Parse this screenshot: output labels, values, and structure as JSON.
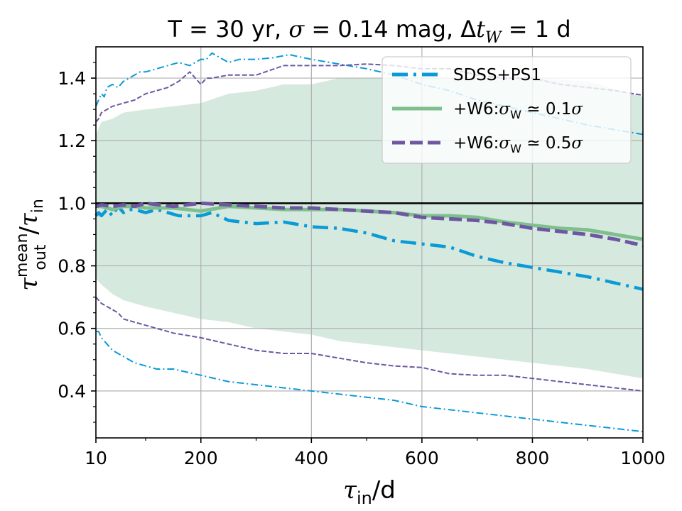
{
  "chart_data": {
    "type": "line",
    "title": {
      "prefix": "T = 30 yr, ",
      "sigma_symbol": "σ",
      "sigma_value": " = 0.14 mag, ",
      "delta": "Δ",
      "t_symbol": "t",
      "t_subscript": "W",
      "dt_value": " = 1 d"
    },
    "xlabel": {
      "symbol": "τ",
      "subscript": "in",
      "suffix": "/d"
    },
    "ylabel": {
      "num_symbol": "τ",
      "num_superscript": "mean",
      "num_subscript": "out",
      "slash": "/",
      "den_symbol": "τ",
      "den_subscript": "in"
    },
    "xlim": [
      10,
      1000
    ],
    "ylim": [
      0.25,
      1.5
    ],
    "xticks": [
      10,
      200,
      400,
      600,
      800,
      1000
    ],
    "xtick_labels": [
      "10",
      "200",
      "400",
      "600",
      "800",
      "1000"
    ],
    "yticks": [
      0.4,
      0.6,
      0.8,
      1.0,
      1.2,
      1.4
    ],
    "ytick_labels": [
      "0.4",
      "0.6",
      "0.8",
      "1.0",
      "1.2",
      "1.4"
    ],
    "grid": true,
    "reference_line": 1.0,
    "legend_position": "top-right",
    "colors": {
      "sdss": "#0a9ad6",
      "w6_01": "#7fbf8e",
      "w6_05": "#6e57a2",
      "band": "#d6e9de",
      "reference": "#000000"
    },
    "legend": [
      {
        "name": "SDSS+PS1",
        "style": "dashdot",
        "colorKey": "sdss"
      },
      {
        "name_prefix": "+W6:",
        "sigma": "σ",
        "sub": "W",
        "approx": " ≃ 0.1",
        "sigma2": "σ",
        "style": "solid",
        "colorKey": "w6_01"
      },
      {
        "name_prefix": "+W6:",
        "sigma": "σ",
        "sub": "W",
        "approx": " ≃ 0.5",
        "sigma2": "σ",
        "style": "dashed",
        "colorKey": "w6_05"
      }
    ],
    "shaded_band": {
      "name": "+W6:σW≃0.1σ spread",
      "colorKey": "band",
      "x": [
        10,
        20,
        40,
        60,
        100,
        150,
        200,
        250,
        300,
        350,
        400,
        450,
        500,
        600,
        700,
        800,
        900,
        1000
      ],
      "upper": [
        1.22,
        1.26,
        1.27,
        1.29,
        1.3,
        1.31,
        1.32,
        1.35,
        1.36,
        1.38,
        1.38,
        1.4,
        1.4,
        1.4,
        1.4,
        1.4,
        1.39,
        1.34
      ],
      "lower": [
        0.76,
        0.74,
        0.71,
        0.69,
        0.67,
        0.65,
        0.63,
        0.62,
        0.6,
        0.59,
        0.58,
        0.56,
        0.55,
        0.53,
        0.51,
        0.49,
        0.47,
        0.44
      ]
    },
    "series": [
      {
        "name": "SDSS+PS1 mean",
        "colorKey": "sdss",
        "style": "dashdot",
        "width": 4.5,
        "x": [
          10,
          15,
          20,
          30,
          40,
          50,
          60,
          70,
          80,
          100,
          120,
          140,
          160,
          180,
          200,
          220,
          250,
          300,
          350,
          400,
          450,
          500,
          550,
          600,
          650,
          700,
          750,
          800,
          850,
          900,
          950,
          1000
        ],
        "y": [
          0.96,
          0.97,
          0.96,
          0.98,
          0.96,
          0.99,
          0.97,
          0.98,
          0.98,
          0.97,
          0.98,
          0.97,
          0.96,
          0.96,
          0.96,
          0.97,
          0.945,
          0.935,
          0.94,
          0.925,
          0.92,
          0.905,
          0.88,
          0.87,
          0.86,
          0.83,
          0.81,
          0.795,
          0.78,
          0.765,
          0.745,
          0.725
        ]
      },
      {
        "name": "+W6:σW≃0.1σ mean",
        "colorKey": "w6_01",
        "style": "solid",
        "width": 5,
        "x": [
          10,
          20,
          40,
          60,
          80,
          100,
          150,
          200,
          250,
          300,
          350,
          400,
          450,
          500,
          550,
          600,
          650,
          700,
          750,
          800,
          850,
          900,
          950,
          1000
        ],
        "y": [
          0.99,
          0.99,
          0.98,
          0.99,
          0.99,
          0.985,
          0.985,
          0.975,
          0.99,
          0.985,
          0.98,
          0.98,
          0.98,
          0.975,
          0.97,
          0.96,
          0.96,
          0.955,
          0.94,
          0.93,
          0.92,
          0.915,
          0.9,
          0.885
        ]
      },
      {
        "name": "+W6:σW≃0.5σ mean",
        "colorKey": "w6_05",
        "style": "dashed",
        "width": 5,
        "x": [
          10,
          20,
          40,
          60,
          80,
          100,
          150,
          200,
          250,
          300,
          350,
          400,
          450,
          500,
          550,
          600,
          650,
          700,
          750,
          800,
          850,
          900,
          950,
          1000
        ],
        "y": [
          0.99,
          0.995,
          0.99,
          0.995,
          0.99,
          1.0,
          0.99,
          1.0,
          0.995,
          0.99,
          0.985,
          0.985,
          0.98,
          0.975,
          0.97,
          0.955,
          0.95,
          0.945,
          0.935,
          0.92,
          0.91,
          0.9,
          0.885,
          0.865
        ]
      },
      {
        "name": "SDSS+PS1 upper",
        "colorKey": "sdss",
        "style": "thin-dashdot",
        "width": 2,
        "x": [
          10,
          15,
          20,
          25,
          30,
          40,
          50,
          60,
          70,
          80,
          90,
          100,
          120,
          140,
          160,
          180,
          200,
          210,
          220,
          230,
          240,
          250,
          270,
          300,
          330,
          360,
          400,
          450,
          500,
          550,
          600,
          650,
          700,
          750,
          800,
          850,
          900,
          950,
          1000
        ],
        "y": [
          1.31,
          1.33,
          1.35,
          1.34,
          1.37,
          1.38,
          1.37,
          1.39,
          1.4,
          1.41,
          1.42,
          1.42,
          1.43,
          1.44,
          1.45,
          1.44,
          1.46,
          1.46,
          1.48,
          1.47,
          1.46,
          1.45,
          1.46,
          1.46,
          1.465,
          1.475,
          1.46,
          1.445,
          1.43,
          1.41,
          1.38,
          1.36,
          1.33,
          1.31,
          1.29,
          1.27,
          1.25,
          1.235,
          1.22
        ]
      },
      {
        "name": "+W6:σW≃0.5σ upper",
        "colorKey": "w6_05",
        "style": "thin-dashed",
        "width": 2,
        "x": [
          10,
          15,
          20,
          30,
          40,
          60,
          80,
          100,
          120,
          140,
          160,
          180,
          200,
          210,
          220,
          250,
          300,
          350,
          400,
          450,
          500,
          550,
          600,
          650,
          700,
          750,
          800,
          850,
          900,
          950,
          1000
        ],
        "y": [
          1.26,
          1.27,
          1.29,
          1.3,
          1.31,
          1.32,
          1.33,
          1.35,
          1.36,
          1.37,
          1.39,
          1.42,
          1.38,
          1.4,
          1.4,
          1.41,
          1.41,
          1.44,
          1.44,
          1.44,
          1.445,
          1.44,
          1.43,
          1.43,
          1.41,
          1.4,
          1.4,
          1.38,
          1.37,
          1.36,
          1.345
        ]
      },
      {
        "name": "+W6:σW≃0.5σ lower",
        "colorKey": "w6_05",
        "style": "thin-dashed",
        "width": 2,
        "x": [
          10,
          20,
          30,
          40,
          50,
          60,
          80,
          100,
          120,
          150,
          200,
          250,
          300,
          350,
          400,
          450,
          500,
          550,
          600,
          650,
          700,
          750,
          800,
          850,
          900,
          950,
          1000
        ],
        "y": [
          0.7,
          0.68,
          0.67,
          0.66,
          0.65,
          0.63,
          0.62,
          0.61,
          0.6,
          0.585,
          0.57,
          0.55,
          0.53,
          0.52,
          0.52,
          0.505,
          0.49,
          0.48,
          0.475,
          0.455,
          0.45,
          0.45,
          0.44,
          0.43,
          0.42,
          0.41,
          0.4
        ]
      },
      {
        "name": "SDSS+PS1 lower",
        "colorKey": "sdss",
        "style": "thin-dashdot",
        "width": 2,
        "x": [
          10,
          15,
          20,
          30,
          40,
          60,
          80,
          100,
          120,
          150,
          200,
          250,
          300,
          350,
          400,
          450,
          500,
          550,
          600,
          650,
          700,
          750,
          800,
          850,
          900,
          950,
          1000
        ],
        "y": [
          0.59,
          0.59,
          0.57,
          0.55,
          0.53,
          0.51,
          0.49,
          0.48,
          0.47,
          0.47,
          0.45,
          0.43,
          0.42,
          0.41,
          0.4,
          0.39,
          0.38,
          0.37,
          0.35,
          0.34,
          0.33,
          0.32,
          0.31,
          0.3,
          0.29,
          0.28,
          0.27
        ]
      }
    ]
  }
}
